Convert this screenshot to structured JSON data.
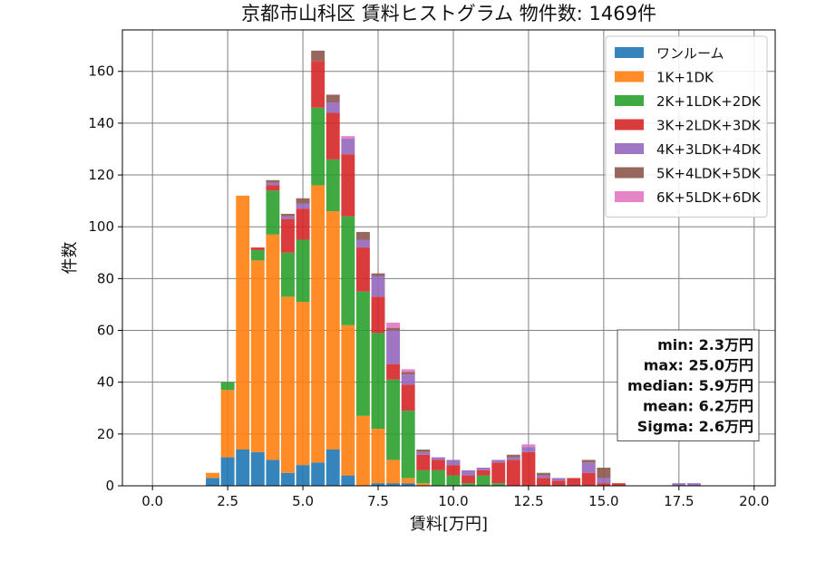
{
  "chart_data": {
    "type": "bar",
    "stacked": true,
    "title": "京都市山科区 賃料ヒストグラム 物件数: 1469件",
    "xlabel": "賃料[万円]",
    "ylabel": "件数",
    "xlim": [
      -1.0,
      20.7
    ],
    "ylim": [
      0,
      176
    ],
    "x_ticks": [
      0.0,
      2.5,
      5.0,
      7.5,
      10.0,
      12.5,
      15.0,
      17.5,
      20.0
    ],
    "x_tick_labels": [
      "0.0",
      "2.5",
      "5.0",
      "7.5",
      "10.0",
      "12.5",
      "15.0",
      "17.5",
      "20.0"
    ],
    "y_ticks": [
      0,
      20,
      40,
      60,
      80,
      100,
      120,
      140,
      160
    ],
    "y_tick_labels": [
      "0",
      "20",
      "40",
      "60",
      "80",
      "100",
      "120",
      "140",
      "160"
    ],
    "grid": true,
    "legend_position": "top-right",
    "bin_width": 0.5,
    "x": [
      2.0,
      2.5,
      3.0,
      3.5,
      4.0,
      4.5,
      5.0,
      5.5,
      6.0,
      6.5,
      7.0,
      7.5,
      8.0,
      8.5,
      9.0,
      9.5,
      10.0,
      10.5,
      11.0,
      11.5,
      12.0,
      12.5,
      13.0,
      13.5,
      14.0,
      14.5,
      15.0,
      15.5,
      17.5,
      18.0
    ],
    "series": [
      {
        "name": "ワンルーム",
        "color": "#1f77b4",
        "values": [
          3,
          11,
          14,
          13,
          10,
          5,
          8,
          9,
          14,
          4,
          0,
          1,
          1,
          1,
          0,
          0,
          0,
          0,
          0,
          0,
          0,
          0,
          0,
          0,
          0,
          0,
          0,
          0,
          0,
          0
        ]
      },
      {
        "name": "1K+1DK",
        "color": "#ff7f0e",
        "values": [
          2,
          26,
          98,
          74,
          87,
          68,
          63,
          107,
          92,
          58,
          27,
          21,
          9,
          2,
          1,
          0,
          0,
          0,
          0,
          0,
          0,
          0,
          0,
          0,
          0,
          0,
          0,
          0,
          0,
          0
        ]
      },
      {
        "name": "2K+1LDK+2DK",
        "color": "#2ca02c",
        "values": [
          0,
          3,
          0,
          4,
          17,
          17,
          24,
          30,
          20,
          42,
          48,
          37,
          31,
          26,
          5,
          6,
          4,
          1,
          4,
          1,
          0,
          0,
          0,
          0,
          0,
          0,
          0,
          0,
          0,
          0
        ]
      },
      {
        "name": "3K+2LDK+3DK",
        "color": "#d62728",
        "values": [
          0,
          0,
          0,
          1,
          2,
          13,
          12,
          18,
          18,
          24,
          17,
          14,
          6,
          10,
          6,
          4,
          4,
          3,
          2,
          8,
          10,
          13,
          3,
          2,
          3,
          5,
          1,
          1,
          0,
          0
        ]
      },
      {
        "name": "4K+3LDK+4DK",
        "color": "#9467bd",
        "values": [
          0,
          0,
          0,
          0,
          1,
          1,
          2,
          0,
          4,
          6,
          3,
          8,
          13,
          4,
          1,
          1,
          2,
          2,
          1,
          1,
          1,
          2,
          1,
          1,
          0,
          4,
          2,
          0,
          1,
          1
        ]
      },
      {
        "name": "5K+4LDK+5DK",
        "color": "#8c564b",
        "values": [
          0,
          0,
          0,
          0,
          1,
          1,
          2,
          4,
          3,
          0,
          3,
          1,
          1,
          1,
          1,
          0,
          0,
          0,
          0,
          0,
          1,
          0,
          1,
          0,
          0,
          1,
          4,
          0,
          0,
          0
        ]
      },
      {
        "name": "6K+5LDK+6DK",
        "color": "#e377c2",
        "values": [
          0,
          0,
          0,
          0,
          0,
          0,
          0,
          0,
          0,
          1,
          0,
          0,
          2,
          1,
          0,
          0,
          0,
          0,
          0,
          0,
          0,
          1,
          0,
          0,
          0,
          0,
          0,
          0,
          0,
          0
        ]
      }
    ],
    "stats": {
      "lines": [
        "min: 2.3万円",
        "max: 25.0万円",
        "median: 5.9万円",
        "mean: 6.2万円",
        "Sigma: 2.6万円"
      ],
      "position": "bottom-right"
    }
  }
}
